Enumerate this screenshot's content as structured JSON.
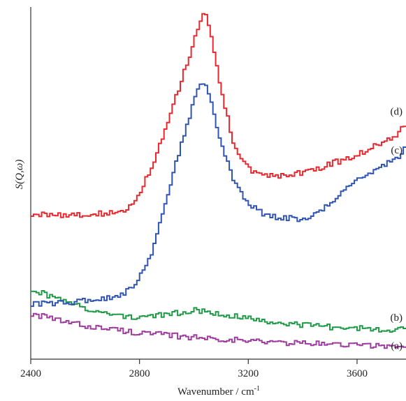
{
  "chart_data": {
    "type": "line",
    "xlabel": "Wavenumber / cm",
    "xlabel_sup": "-1",
    "ylabel": "S(Q,ω)",
    "xlim": [
      2400,
      3780
    ],
    "ylim": [
      0,
      1
    ],
    "xticks": [
      2400,
      2800,
      3200,
      3600
    ],
    "grid": false,
    "series": [
      {
        "name": "(a)",
        "color": "#a03ca0",
        "x": [
          2400,
          2500,
          2600,
          2700,
          2800,
          2900,
          3000,
          3100,
          3200,
          3300,
          3400,
          3500,
          3600,
          3700,
          3780
        ],
        "values": [
          0.13,
          0.11,
          0.095,
          0.085,
          0.075,
          0.068,
          0.062,
          0.058,
          0.052,
          0.048,
          0.045,
          0.043,
          0.04,
          0.038,
          0.037
        ]
      },
      {
        "name": "(b)",
        "color": "#1f9a47",
        "x": [
          2400,
          2500,
          2600,
          2700,
          2800,
          2900,
          3000,
          3100,
          3200,
          3300,
          3400,
          3500,
          3600,
          3700,
          3780
        ],
        "values": [
          0.2,
          0.17,
          0.145,
          0.125,
          0.12,
          0.125,
          0.14,
          0.13,
          0.115,
          0.105,
          0.098,
          0.092,
          0.088,
          0.085,
          0.085
        ]
      },
      {
        "name": "(c)",
        "color": "#2f54b4",
        "x": [
          2400,
          2500,
          2600,
          2700,
          2750,
          2800,
          2850,
          2900,
          2950,
          3000,
          3030,
          3050,
          3070,
          3100,
          3150,
          3200,
          3250,
          3300,
          3350,
          3400,
          3450,
          3500,
          3550,
          3600,
          3650,
          3700,
          3750,
          3780
        ],
        "values": [
          0.155,
          0.16,
          0.165,
          0.175,
          0.19,
          0.23,
          0.31,
          0.45,
          0.6,
          0.73,
          0.79,
          0.77,
          0.71,
          0.62,
          0.5,
          0.44,
          0.415,
          0.405,
          0.4,
          0.395,
          0.41,
          0.44,
          0.48,
          0.51,
          0.53,
          0.55,
          0.57,
          0.6
        ]
      },
      {
        "name": "(d)",
        "color": "#e8282e",
        "x": [
          2400,
          2500,
          2600,
          2700,
          2750,
          2800,
          2850,
          2900,
          2950,
          3000,
          3030,
          3050,
          3070,
          3100,
          3150,
          3200,
          3250,
          3300,
          3350,
          3400,
          3450,
          3500,
          3550,
          3600,
          3650,
          3700,
          3750,
          3780
        ],
        "values": [
          0.41,
          0.41,
          0.41,
          0.415,
          0.425,
          0.47,
          0.55,
          0.66,
          0.78,
          0.9,
          0.98,
          0.97,
          0.9,
          0.77,
          0.6,
          0.54,
          0.525,
          0.52,
          0.525,
          0.53,
          0.54,
          0.555,
          0.565,
          0.58,
          0.6,
          0.62,
          0.64,
          0.67
        ]
      }
    ]
  }
}
